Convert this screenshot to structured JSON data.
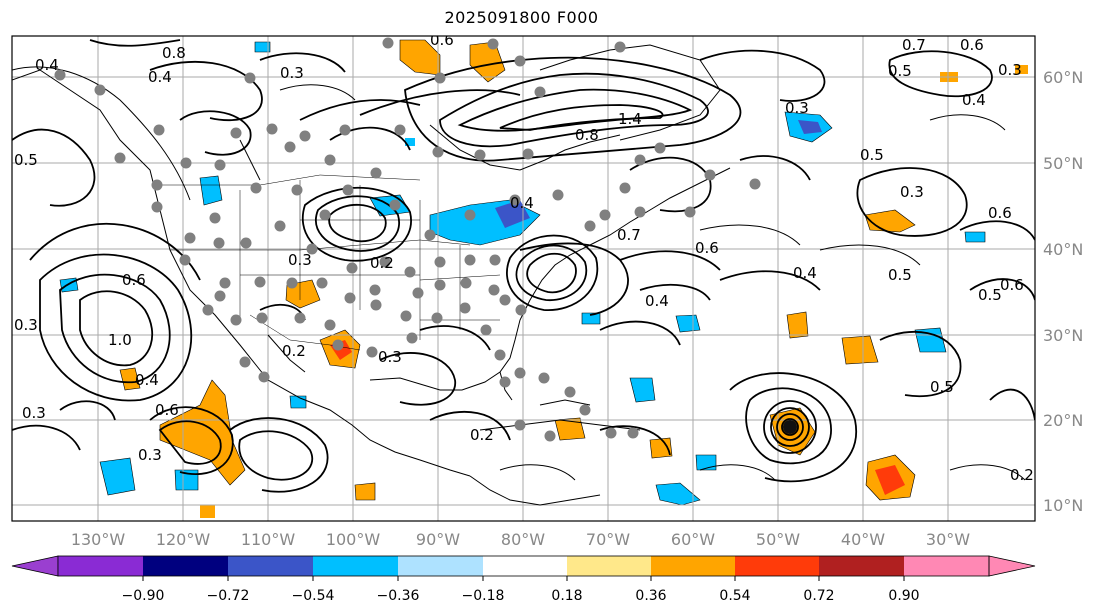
{
  "title": "2025091800 F000",
  "lat_labels": [
    "60°N",
    "50°N",
    "40°N",
    "30°N",
    "20°N",
    "10°N"
  ],
  "lon_labels": [
    "130°W",
    "120°W",
    "110°W",
    "100°W",
    "90°W",
    "80°W",
    "70°W",
    "60°W",
    "50°W",
    "40°W",
    "30°W"
  ],
  "contour_labels": [
    "0.4",
    "0.8",
    "0.4",
    "0.3",
    "0.6",
    "0.7",
    "0.6",
    "0.5",
    "0.4",
    "0.3",
    "0.3",
    "0.5",
    "0.6",
    "0.7",
    "0.4",
    "0.6",
    "0.3",
    "0.5",
    "0.6",
    "0.5",
    "1.0",
    "0.3",
    "0.6",
    "0.4",
    "0.3",
    "0.3",
    "0.2",
    "0.3",
    "0.6",
    "0.4",
    "0.2",
    "0.2",
    "0.5",
    "0.2",
    "1.4",
    "0.8",
    "0.5",
    "0.4",
    "0.3"
  ],
  "colorbar": {
    "ticks": [
      "−0.90",
      "−0.72",
      "−0.54",
      "−0.36",
      "−0.18",
      "0.18",
      "0.36",
      "0.54",
      "0.72",
      "0.90"
    ],
    "colors": {
      "under": "#9a3fd0",
      "bins": [
        "#8a2bd4",
        "#00007f",
        "#3b55c8",
        "#00bfff",
        "#aee2ff",
        "#ffffff",
        "#ffe88a",
        "#ffa500",
        "#ff3b0a",
        "#b02020"
      ],
      "over": "#ff88b4"
    }
  },
  "colors": {
    "neg_strong": "#00bfff",
    "neg_deep": "#3b55c8",
    "pos_orange": "#ffa500",
    "pos_red": "#ff3b0a",
    "station": "#808080",
    "grid": "#aaaaaa"
  }
}
